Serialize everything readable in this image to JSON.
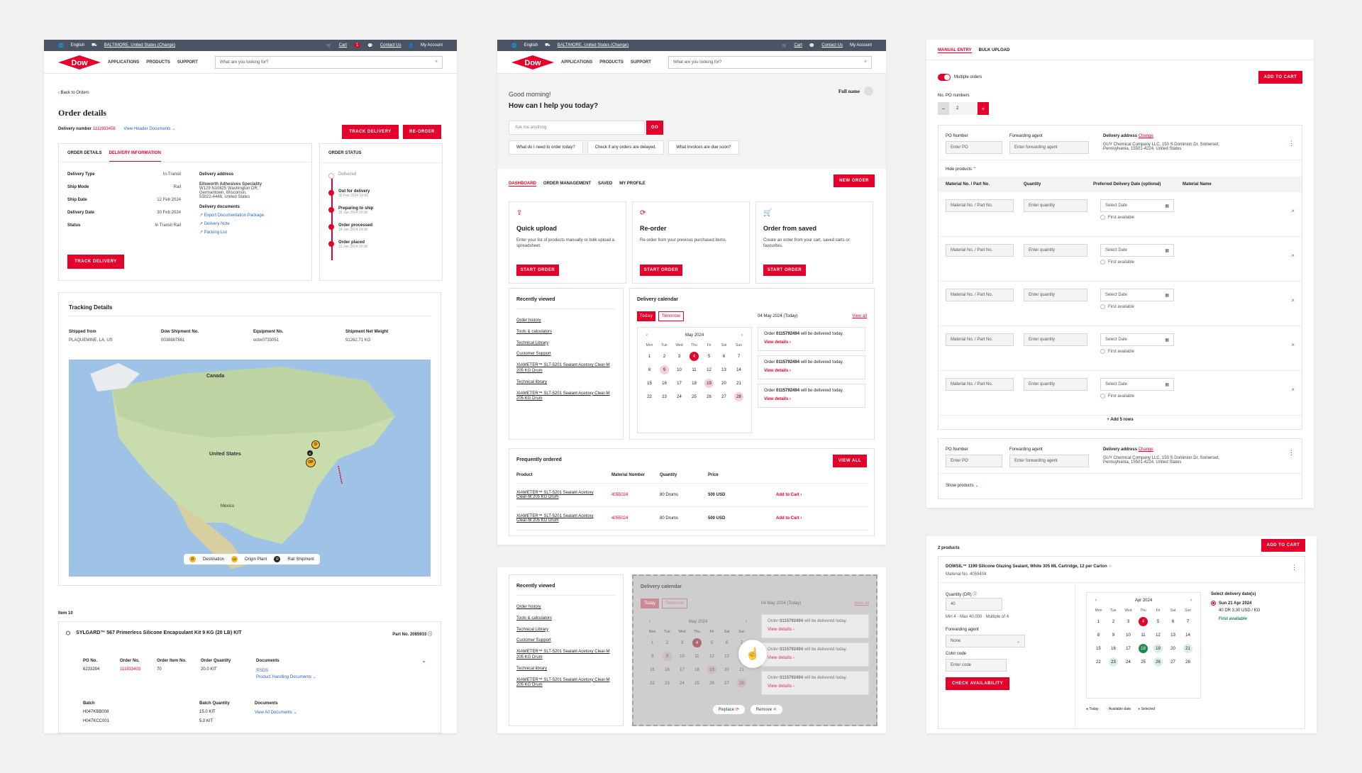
{
  "util": {
    "lang": "English",
    "location": "BALTIMORE, United States (Change)",
    "cart": "Cart",
    "cart_count": "1",
    "contact": "Contact Us",
    "account": "My Account"
  },
  "nav": {
    "logo": "Dow",
    "items": [
      "APPLICATIONS",
      "PRODUCTS",
      "SUPPORT"
    ],
    "search_placeholder": "What are you looking for?"
  },
  "order": {
    "back": "Back to Orders",
    "title": "Order details",
    "delivery_label": "Delivery number",
    "delivery_number": "1111933458",
    "view_header_docs": "View Header Documents",
    "track_btn": "TRACK DELIVERY",
    "reorder_btn": "RE-ORDER",
    "tabs": [
      "ORDER DETAILS",
      "DELIVERY INFORMATION"
    ],
    "fields": [
      {
        "k": "Delivery Type",
        "v": "In-Transit"
      },
      {
        "k": "Ship Mode",
        "v": "Rail"
      },
      {
        "k": "Ship Date",
        "v": "12 Feb 2024"
      },
      {
        "k": "Delivery Date",
        "v": "30 Feb 2024"
      },
      {
        "k": "Status",
        "v": "In Transit Rail"
      }
    ],
    "address_title": "Delivery address",
    "address_name": "Ellsworth Adhesives Speciality",
    "address_lines": [
      "W129 N10825 Washington DR,",
      "Germantown, Wisconsin,",
      "53022-4446, United States"
    ],
    "docs_title": "Delivery documents",
    "docs": [
      "Export Documentation Package",
      "Delivery Note",
      "Packing List"
    ],
    "status_title": "ORDER STATUS",
    "statuses": [
      {
        "label": "Delivered",
        "date": ""
      },
      {
        "label": "Out for delivery",
        "date": "30 Feb 2024 10:00"
      },
      {
        "label": "Preparing to ship",
        "date": "16 Jan 2024 09:00"
      },
      {
        "label": "Order processed",
        "date": "14 Jan 2024 14:00"
      },
      {
        "label": "Order placed",
        "date": "12 Jan 2024 09:00"
      }
    ],
    "tracking_title": "Tracking Details",
    "tracking": [
      {
        "k": "Shipped from",
        "v": "PLAQUEMINE, LA, US"
      },
      {
        "k": "Dow Shipment No.",
        "v": "0038887881"
      },
      {
        "k": "Equipment No.",
        "v": "ocbx0733051"
      },
      {
        "k": "Shipment Net Weight",
        "v": "91262.71 KG"
      }
    ],
    "map_labels": {
      "canada": "Canada",
      "us": "United States",
      "mexico": "Mexico"
    },
    "legend": [
      {
        "badge": "D",
        "label": "Destination"
      },
      {
        "badge": "OP",
        "label": "Origin Plant"
      },
      {
        "badge": "R",
        "label": "Rail Shipment"
      }
    ],
    "item_title": "Item 10",
    "item_name": "SYLGARD™ 567 Primerless Silicone Encapsulant Kit 9 KG (20 LB) KIT",
    "part_no": "Part No. 2085933",
    "cols": [
      "PO No.",
      "Order No.",
      "Order Item No.",
      "Order Quantity",
      "Documents"
    ],
    "row": [
      "6233294",
      "111933403",
      "70",
      "20.0 KIT"
    ],
    "sds": "SDS",
    "phd": "Product Handling Documents",
    "batch_cols": [
      "Batch",
      "Batch Quantity",
      "Documents"
    ],
    "batches": [
      {
        "b": "H047KBB008",
        "q": "15.0 KIT"
      },
      {
        "b": "H047KCC001",
        "q": "5.0 KIT"
      }
    ],
    "view_all_docs": "View All Documents"
  },
  "dash": {
    "greet": "Good morning!",
    "question": "How can I help you today?",
    "ask_placeholder": "Ask me anything",
    "go": "GO",
    "full_name": "Full name",
    "chips": [
      "What do I need to order today?",
      "Check if any orders are delayed.",
      "What invoices are due soon?"
    ],
    "tabs": [
      "DASHBOARD",
      "ORDER MANAGEMENT",
      "SAVED",
      "MY PROFILE"
    ],
    "new_order": "NEW ORDER",
    "cards": [
      {
        "title": "Quick upload",
        "desc": "Enter your list of products manually or bulk upload a spreadsheet.",
        "btn": "START ORDER"
      },
      {
        "title": "Re-order",
        "desc": "Re-order from your previous purchased items.",
        "btn": "START ORDER"
      },
      {
        "title": "Order from saved",
        "desc": "Create an order from your cart, saved carts or favourites.",
        "btn": "START ORDER"
      }
    ],
    "recent_title": "Recently viewed",
    "recent": [
      "Order history",
      "Tools & calculators",
      "Technical Library",
      "Customer Support",
      "XIAMETER™ SLT-5201 Sealant Acetoxy Clear-M 205 KG Drum",
      "Technical library",
      "XIAMETER™ SLT-5201 Sealant Acetoxy Clear-M 205 KG Drum"
    ],
    "cal_title": "Delivery calendar",
    "today": "Today",
    "tomorrow": "Tomorrow",
    "cal_date": "04 May 2024 (Today)",
    "view_all": "View all",
    "month": "May 2024",
    "dow": [
      "Mon",
      "Tue",
      "Wed",
      "Thu",
      "Fri",
      "Sat",
      "Sun"
    ],
    "days": [
      "1",
      "2",
      "3",
      "4",
      "5",
      "6",
      "7",
      "8",
      "9",
      "10",
      "11",
      "12",
      "13",
      "14",
      "15",
      "16",
      "17",
      "18",
      "19",
      "20",
      "21",
      "22",
      "23",
      "24",
      "25",
      "26",
      "27",
      "28"
    ],
    "deliveries": [
      {
        "pre": "Order",
        "num": "0115792494",
        "post": "will be delivered today."
      },
      {
        "pre": "Order",
        "num": "0115792494",
        "post": "will be delivered today."
      },
      {
        "pre": "Order",
        "num": "0115792494",
        "post": "will be delivered today."
      }
    ],
    "view_details": "View details",
    "freq_title": "Frequently ordered",
    "freq_btn": "VIEW ALL",
    "freq_cols": [
      "Product",
      "Material Number",
      "Quantity",
      "Price"
    ],
    "freq": [
      {
        "p": "XIAMETER™ SLT-5201 Sealant Acetoxy Clear-M 205 KG Drum",
        "m": "4055024",
        "q": "80 Drums",
        "pr": "500 USD"
      },
      {
        "p": "XIAMETER™ SLT-5201 Sealant Acetoxy Clear-M 205 KG Drum",
        "m": "4055024",
        "q": "80 Drums",
        "pr": "500 USD"
      }
    ],
    "add_to_cart": "Add to Cart",
    "replace": "Replace",
    "remove": "Remove"
  },
  "manual": {
    "tabs": [
      "MANUAL ENTRY",
      "BULK UPLOAD"
    ],
    "add_btn": "ADD TO CART",
    "multi": "Multiple orders",
    "po_numbers": "No. PO numbers",
    "po_count": "2",
    "po_label": "PO Number",
    "po_placeholder": "Enter PO",
    "agent_label": "Forwarding agent",
    "agent_placeholder": "Enter forwarding agent",
    "addr_label": "Delivery address",
    "change": "Change",
    "addr": "GUY Chemical Company LLC, 150 S Dominion Dr, Somerset, Pennsylvania, 15501-4224, United States",
    "hide": "Hide products",
    "show": "Show products",
    "cols": [
      "Material No. / Part No.",
      "Quantity",
      "Preferred Delivery Date (optional)",
      "Material Name"
    ],
    "mat_placeholder": "Material No. / Part No.",
    "qty_placeholder": "Enter quantity",
    "date_placeholder": "Select Date",
    "first": "First available",
    "add_rows": "Add 5 rows"
  },
  "avail": {
    "count": "2 products",
    "add_btn": "ADD TO CART",
    "product": "DOWSIL™ 1199 Silicone Glazing Sealant, White 305 ML Cartridge, 12 per Carton",
    "material": "Material No. 4059404",
    "qty_label": "Quantity (DR)",
    "qty": "40",
    "qty_hint": "Min 4 · Max 40,000 · Multiple of 4",
    "agent_label": "Forwarding agent",
    "agent": "None",
    "color_label": "Color code",
    "color_placeholder": "Enter code",
    "check": "CHECK AVAILABILITY",
    "month": "Apr 2024",
    "dow": [
      "Mon",
      "Tue",
      "Wed",
      "Thu",
      "Fri",
      "Sat",
      "Sun"
    ],
    "days": [
      "1",
      "2",
      "3",
      "4",
      "5",
      "6",
      "7",
      "8",
      "9",
      "10",
      "11",
      "12",
      "13",
      "14",
      "15",
      "16",
      "17",
      "18",
      "19",
      "20",
      "21",
      "22",
      "23",
      "24",
      "25",
      "26",
      "27",
      "28"
    ],
    "select_title": "Select delivery date(s)",
    "sel_date": "Sun 21 Apr 2024",
    "sel_price": "40 DR   3.30 USD / KG",
    "first": "First available",
    "legend": [
      "Today",
      "Available date",
      "Selected"
    ]
  },
  "colors": {
    "brand": "#e4002b",
    "avail": "#d8f1e0",
    "selected": "#1f8a4c",
    "header": "#4b5562"
  }
}
